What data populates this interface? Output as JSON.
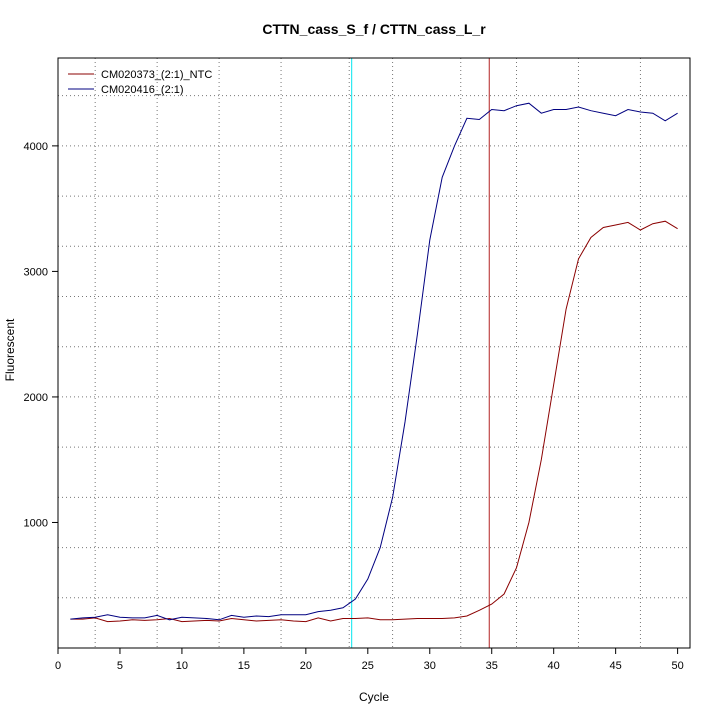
{
  "chart_data": {
    "type": "line",
    "title": "CTTN_cass_S_f / CTTN_cass_L_r",
    "xlabel": "Cycle",
    "ylabel": "Fluorescent",
    "xlim": [
      0,
      51
    ],
    "ylim": [
      0,
      4700
    ],
    "x_ticks": [
      0,
      5,
      10,
      15,
      20,
      25,
      30,
      35,
      40,
      45,
      50
    ],
    "y_ticks": [
      1000,
      2000,
      3000,
      4000
    ],
    "grid": true,
    "grid_style": "dotted",
    "legend_position": "top-left",
    "x_grid_lines": [
      3,
      8,
      13,
      18,
      23.5,
      27,
      32.5,
      37,
      42,
      47
    ],
    "y_grid_lines": [
      400,
      800,
      1200,
      1600,
      2000,
      2400,
      2800,
      3200,
      3600,
      4000,
      4400
    ],
    "vertical_markers": [
      {
        "x": 23.7,
        "color": "#00e5ee"
      },
      {
        "x": 34.8,
        "color": "#b22222"
      }
    ],
    "x": [
      1,
      2,
      3,
      4,
      5,
      6,
      7,
      8,
      9,
      10,
      11,
      12,
      13,
      14,
      15,
      16,
      17,
      18,
      19,
      20,
      21,
      22,
      23,
      24,
      25,
      26,
      27,
      28,
      29,
      30,
      31,
      32,
      33,
      34,
      35,
      36,
      37,
      38,
      39,
      40,
      41,
      42,
      43,
      44,
      45,
      46,
      47,
      48,
      49,
      50
    ],
    "series": [
      {
        "name": "CM020373_(2:1)_NTC",
        "color": "#8b0000",
        "values": [
          230,
          230,
          240,
          210,
          215,
          225,
          220,
          225,
          235,
          210,
          215,
          220,
          215,
          235,
          225,
          215,
          220,
          225,
          215,
          210,
          240,
          215,
          235,
          235,
          240,
          225,
          225,
          230,
          235,
          235,
          235,
          240,
          255,
          300,
          350,
          430,
          640,
          1000,
          1500,
          2100,
          2700,
          3100,
          3270,
          3350,
          3370,
          3390,
          3330,
          3380,
          3400,
          3340
        ]
      },
      {
        "name": "CM020416_(2:1)",
        "color": "#000080",
        "values": [
          230,
          240,
          245,
          265,
          245,
          240,
          240,
          260,
          225,
          245,
          240,
          235,
          225,
          260,
          245,
          255,
          250,
          265,
          265,
          265,
          290,
          300,
          320,
          390,
          550,
          800,
          1200,
          1800,
          2500,
          3250,
          3750,
          4000,
          4220,
          4210,
          4290,
          4280,
          4320,
          4340,
          4260,
          4290,
          4290,
          4310,
          4280,
          4260,
          4240,
          4290,
          4270,
          4260,
          4200,
          4260
        ]
      }
    ]
  }
}
